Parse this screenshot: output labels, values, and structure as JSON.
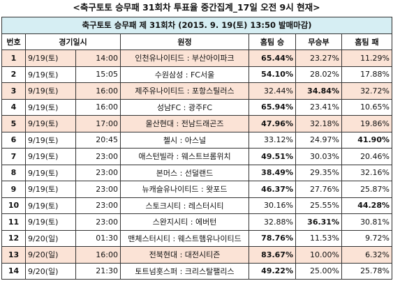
{
  "page_title": "<축구토토 승무패 31회차 투표율 중간집계_17일 오전 9시 현재>",
  "table_header": "축구토토 승무패 제 31회차 (2015. 9. 19(토) 13:50 발매마감)",
  "columns": {
    "no": "번호",
    "datetime": "경기일시",
    "match": "원정",
    "home_win": "홈팀 승",
    "draw": "무승부",
    "home_loss": "홈팀 패"
  },
  "rows": [
    {
      "no": "1",
      "date": "9/19(토)",
      "time": "14:00",
      "match": "인천유나이티드 : 부산아이파크",
      "win": "65.44%",
      "draw": "23.27%",
      "loss": "11.29%",
      "bold": "win",
      "shade": "pink"
    },
    {
      "no": "2",
      "date": "9/19(토)",
      "time": "15:05",
      "match": "수원삼성 : FC서울",
      "win": "54.10%",
      "draw": "28.02%",
      "loss": "17.88%",
      "bold": "win",
      "shade": "white"
    },
    {
      "no": "3",
      "date": "9/19(토)",
      "time": "16:00",
      "match": "제주유나이티드 : 포항스틸러스",
      "win": "32.44%",
      "draw": "34.84%",
      "loss": "32.72%",
      "bold": "draw",
      "shade": "pink"
    },
    {
      "no": "4",
      "date": "9/19(토)",
      "time": "16:00",
      "match": "성남FC : 광주FC",
      "win": "65.94%",
      "draw": "23.41%",
      "loss": "10.65%",
      "bold": "win",
      "shade": "white"
    },
    {
      "no": "5",
      "date": "9/19(토)",
      "time": "17:00",
      "match": "울산현대 : 전남드래곤즈",
      "win": "47.96%",
      "draw": "32.18%",
      "loss": "19.86%",
      "bold": "win",
      "shade": "pink"
    },
    {
      "no": "6",
      "date": "9/19(토)",
      "time": "20:45",
      "match": "첼시 : 아스널",
      "win": "33.12%",
      "draw": "24.97%",
      "loss": "41.90%",
      "bold": "loss",
      "shade": "white"
    },
    {
      "no": "7",
      "date": "9/19(토)",
      "time": "23:00",
      "match": "애스턴빌라 : 웨스트브롬위치",
      "win": "49.51%",
      "draw": "30.03%",
      "loss": "20.46%",
      "bold": "win",
      "shade": "white"
    },
    {
      "no": "8",
      "date": "9/19(토)",
      "time": "23:00",
      "match": "본머스 : 선덜랜드",
      "win": "38.49%",
      "draw": "29.35%",
      "loss": "32.16%",
      "bold": "win",
      "shade": "white"
    },
    {
      "no": "9",
      "date": "9/19(토)",
      "time": "23:00",
      "match": "뉴캐슬유나이티드 : 왓포드",
      "win": "46.37%",
      "draw": "27.76%",
      "loss": "25.87%",
      "bold": "win",
      "shade": "white"
    },
    {
      "no": "10",
      "date": "9/19(토)",
      "time": "23:00",
      "match": "스토크시티 : 레스터시티",
      "win": "30.16%",
      "draw": "25.55%",
      "loss": "44.28%",
      "bold": "loss",
      "shade": "white"
    },
    {
      "no": "11",
      "date": "9/19(토)",
      "time": "23:00",
      "match": "스완지시티 : 에버턴",
      "win": "32.88%",
      "draw": "36.31%",
      "loss": "30.81%",
      "bold": "draw",
      "shade": "white"
    },
    {
      "no": "12",
      "date": "9/20(일)",
      "time": "01:30",
      "match": "맨체스터시티 : 웨스트햄유나이티드",
      "win": "78.76%",
      "draw": "11.53%",
      "loss": "9.72%",
      "bold": "win",
      "shade": "white"
    },
    {
      "no": "13",
      "date": "9/20(일)",
      "time": "16:00",
      "match": "전북현대 : 대전시티즌",
      "win": "83.67%",
      "draw": "10.00%",
      "loss": "6.32%",
      "bold": "win",
      "shade": "pink"
    },
    {
      "no": "14",
      "date": "9/20(일)",
      "time": "21:30",
      "match": "토트넘홋스퍼 : 크리스탈팰리스",
      "win": "49.22%",
      "draw": "25.00%",
      "loss": "25.78%",
      "bold": "win",
      "shade": "white"
    }
  ]
}
